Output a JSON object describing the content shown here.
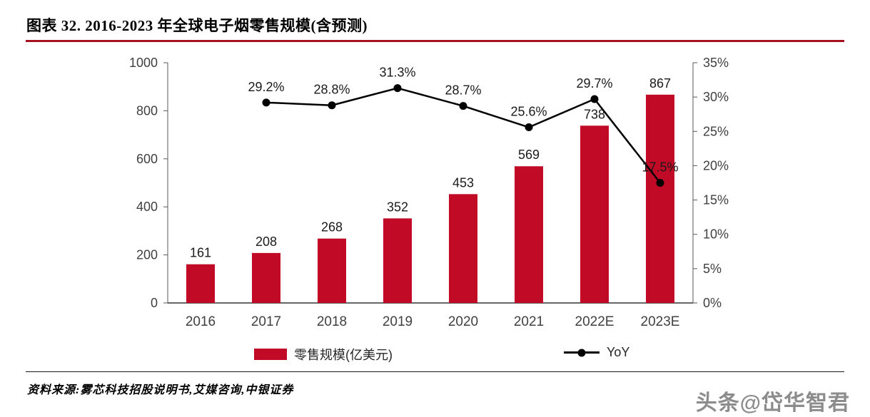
{
  "header": {
    "title": "图表 32. 2016-2023 年全球电子烟零售规模(含预测)"
  },
  "chart_data": {
    "type": "bar",
    "subtype": "bar+line combo",
    "categories": [
      "2016",
      "2017",
      "2018",
      "2019",
      "2020",
      "2021",
      "2022E",
      "2023E"
    ],
    "bar_series": {
      "name": "零售规模(亿美元)",
      "values": [
        161,
        208,
        268,
        352,
        453,
        569,
        738,
        867
      ],
      "labels": [
        "161",
        "208",
        "268",
        "352",
        "453",
        "569",
        "738",
        "867"
      ],
      "color": "#C00A26",
      "axis": "left"
    },
    "line_series": {
      "name": "YoY",
      "values": [
        null,
        29.2,
        28.8,
        31.3,
        28.7,
        25.6,
        29.7,
        17.5
      ],
      "labels": [
        null,
        "29.2%",
        "28.8%",
        "31.3%",
        "28.7%",
        "25.6%",
        "29.7%",
        "17.5%"
      ],
      "color": "#000000",
      "axis": "right"
    },
    "left_axis": {
      "min": 0,
      "max": 1000,
      "step": 200,
      "ticks": [
        "0",
        "200",
        "400",
        "600",
        "800",
        "1000"
      ]
    },
    "right_axis": {
      "min": 0,
      "max": 35,
      "step": 5,
      "ticks": [
        "0%",
        "5%",
        "10%",
        "15%",
        "20%",
        "25%",
        "30%",
        "35%"
      ]
    },
    "legend": [
      {
        "label": "零售规模(亿美元)",
        "type": "bar"
      },
      {
        "label": "YoY",
        "type": "line"
      }
    ],
    "grid": false,
    "legend_position": "bottom"
  },
  "footer": {
    "source": "资料来源:雾芯科技招股说明书,艾媒咨询,中银证券",
    "watermark": "头条@岱华智君"
  },
  "colors": {
    "bar": "#C00A26",
    "title_rule": "#A6101F",
    "line": "#000000",
    "axis": "#595959",
    "label_text": "#1a1a1a",
    "tick_text": "#404040",
    "watermark_text": "#8c8c8c"
  }
}
